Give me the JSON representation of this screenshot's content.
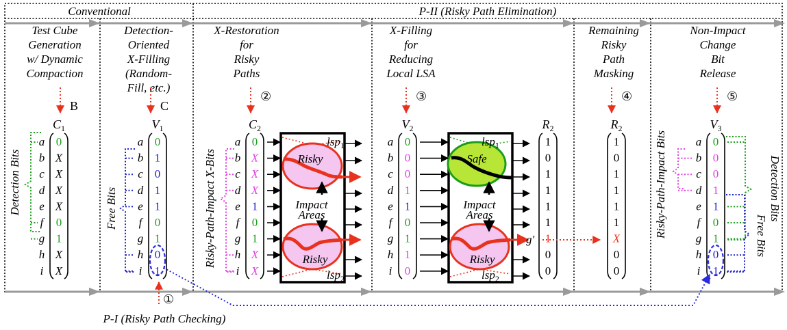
{
  "header": {
    "conventional": "Conventional",
    "p2": "P-II (Risky Path Elimination)",
    "p1": "P-I (Risky Path Checking)"
  },
  "stages": [
    {
      "lines": [
        "Test Cube",
        "Generation",
        "w/ Dynamic",
        "Compaction"
      ],
      "marker": "B"
    },
    {
      "lines": [
        "Detection-",
        "Oriented",
        "X-Filling",
        "(Random-",
        "Fill, etc.)"
      ],
      "marker": "C"
    },
    {
      "lines": [
        "X-Restoration",
        "for",
        "Risky",
        "Paths"
      ],
      "marker": "②"
    },
    {
      "lines": [
        "X-Filling",
        "for",
        "Reducing",
        "Local LSA"
      ],
      "marker": "③"
    },
    {
      "lines": [
        "Remaining",
        "Risky",
        "Path",
        "Masking"
      ],
      "marker": "④"
    },
    {
      "lines": [
        "Non-Impact",
        "Change",
        "Bit",
        "Release"
      ],
      "marker": "⑤"
    }
  ],
  "step1_marker": "①",
  "row_labels": [
    "a",
    "b",
    "c",
    "d",
    "e",
    "f",
    "g",
    "h",
    "i"
  ],
  "vectors": {
    "C1": {
      "name": "C",
      "sub": "1",
      "values": [
        "0",
        "X",
        "X",
        "X",
        "X",
        "0",
        "1",
        "X",
        "X"
      ]
    },
    "V1": {
      "name": "V",
      "sub": "1",
      "values": [
        "0",
        "1",
        "0",
        "1",
        "1",
        "0",
        "1",
        "0",
        "1"
      ]
    },
    "C2": {
      "name": "C",
      "sub": "2",
      "values": [
        "0",
        "X",
        "X",
        "X",
        "1",
        "0",
        "1",
        "X",
        "X"
      ]
    },
    "V2": {
      "name": "V",
      "sub": "2",
      "values": [
        "0",
        "0",
        "0",
        "1",
        "1",
        "0",
        "1",
        "1",
        "0"
      ]
    },
    "R2a": {
      "name": "R",
      "sub": "2",
      "values": [
        "1",
        "0",
        "1",
        "1",
        "1",
        "1",
        "1",
        "0",
        "0"
      ]
    },
    "R2b": {
      "name": "R",
      "sub": "2",
      "values": [
        "1",
        "0",
        "1",
        "1",
        "1",
        "1",
        "X",
        "0",
        "0"
      ]
    },
    "V3": {
      "name": "V",
      "sub": "3",
      "values": [
        "0",
        "0",
        "0",
        "1",
        "1",
        "0",
        "1",
        "0",
        "1"
      ]
    }
  },
  "labels": {
    "detection_bits": "Detection Bits",
    "free_bits": "Free Bits",
    "risky_path_impact_x_bits": "Risky-Path-Impact X-Bits",
    "risky_path_impact_bits": "Risky-Path-Impact Bits",
    "risky": "Risky",
    "safe": "Safe",
    "impact": "Impact",
    "areas": "Areas",
    "lsp": "lsp",
    "lsp1_sub": "1",
    "lsp2_sub": "2",
    "g_prime": "g′"
  },
  "colors": {
    "green": "#1a9e1a",
    "blue": "#1f1fc8",
    "magenta": "#e040e0",
    "red": "#e8321e",
    "pink_fill": "#f4c6f0",
    "safe_fill": "#b8e636",
    "grey_arrow": "#9a9a9a",
    "dashed_blue": "#2a2ae0"
  }
}
